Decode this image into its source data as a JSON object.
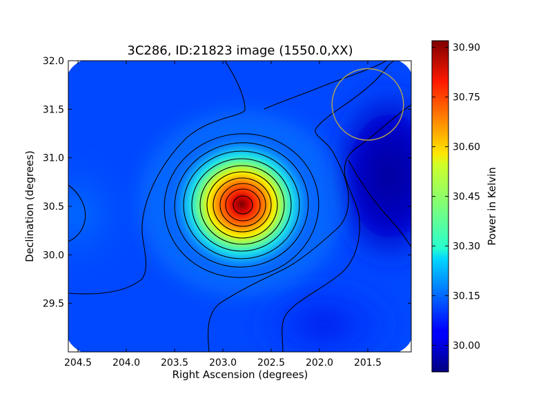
{
  "chart_data": {
    "type": "heatmap",
    "title": "3C286, ID:21823 image (1550.0,XX)",
    "xlabel": "Right Ascension (degrees)",
    "ylabel": "Declination (degrees)",
    "colorbar_label": "Power in Kelvin",
    "colormap": "jet",
    "xlim": [
      204.6,
      201.05
    ],
    "ylim": [
      29.0,
      32.0
    ],
    "xticks": [
      {
        "value": 204.5,
        "label": "204.5"
      },
      {
        "value": 204.0,
        "label": "204.0"
      },
      {
        "value": 203.5,
        "label": "203.5"
      },
      {
        "value": 203.0,
        "label": "203.0"
      },
      {
        "value": 202.5,
        "label": "202.5"
      },
      {
        "value": 202.0,
        "label": "202.0"
      },
      {
        "value": 201.5,
        "label": "201.5"
      }
    ],
    "yticks": [
      {
        "value": 29.5,
        "label": "29.5"
      },
      {
        "value": 30.0,
        "label": "30.0"
      },
      {
        "value": 30.5,
        "label": "30.5"
      },
      {
        "value": 31.0,
        "label": "31.0"
      },
      {
        "value": 31.5,
        "label": "31.5"
      },
      {
        "value": 32.0,
        "label": "32.0"
      }
    ],
    "color_range": [
      29.92,
      30.92
    ],
    "colorbar_ticks": [
      {
        "value": 30.0,
        "label": "30.00"
      },
      {
        "value": 30.15,
        "label": "30.15"
      },
      {
        "value": 30.3,
        "label": "30.30"
      },
      {
        "value": 30.45,
        "label": "30.45"
      },
      {
        "value": 30.6,
        "label": "30.60"
      },
      {
        "value": 30.75,
        "label": "30.75"
      },
      {
        "value": 30.9,
        "label": "30.90"
      }
    ],
    "source_peak": {
      "ra": 202.78,
      "dec": 30.52,
      "value": 30.91
    },
    "beam_circle": {
      "ra": 201.5,
      "dec": 31.55,
      "radius_deg": 0.37,
      "color": "#b5a84f"
    },
    "contour_color": "#000000"
  }
}
